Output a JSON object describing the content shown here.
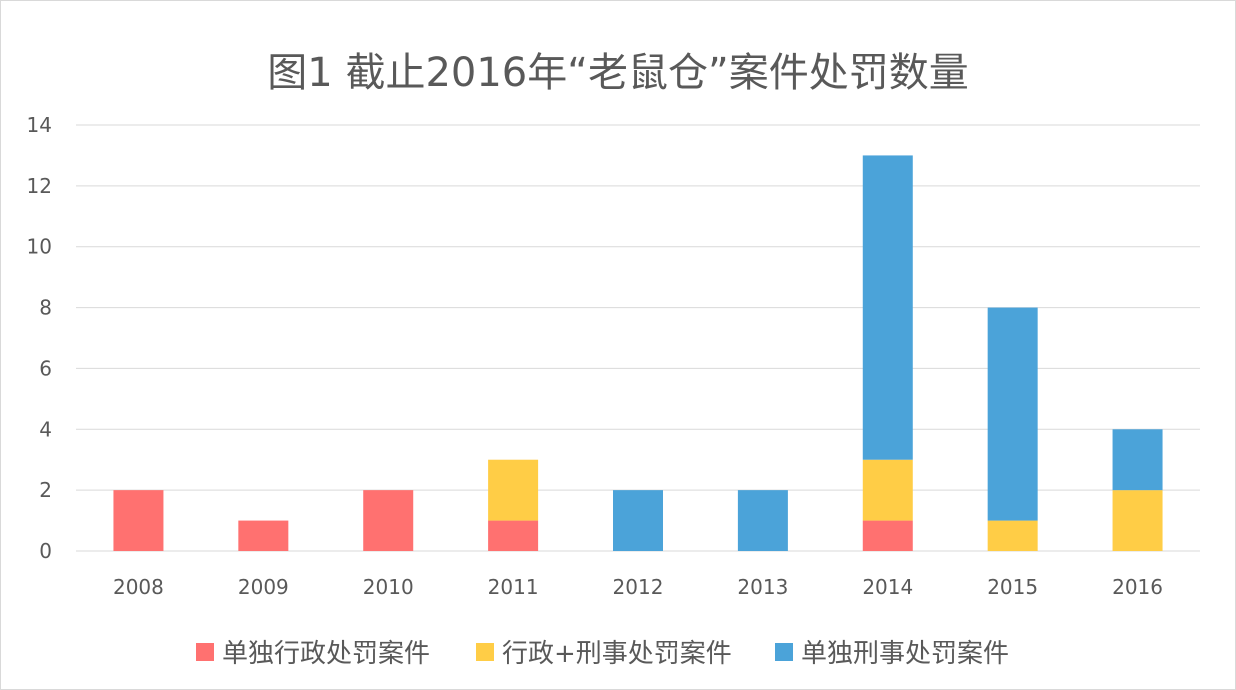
{
  "chart_data": {
    "type": "bar",
    "stacked": true,
    "title": "图1 截止2016年“老鼠仓”案件处罚数量",
    "xlabel": "",
    "ylabel": "",
    "categories": [
      "2008",
      "2009",
      "2010",
      "2011",
      "2012",
      "2013",
      "2014",
      "2015",
      "2016"
    ],
    "ylim": [
      0,
      14
    ],
    "yticks": [
      0,
      2,
      4,
      6,
      8,
      10,
      12,
      14
    ],
    "grid": true,
    "legend_position": "bottom",
    "series": [
      {
        "name": "单独行政处罚案件",
        "color": "#ff7170",
        "values": [
          2,
          1,
          2,
          1,
          0,
          0,
          1,
          0,
          0
        ]
      },
      {
        "name": "行政+刑事处罚案件",
        "color": "#ffcd46",
        "values": [
          0,
          0,
          0,
          2,
          0,
          0,
          2,
          1,
          2
        ]
      },
      {
        "name": "单独刑事处罚案件",
        "color": "#4ba3d9",
        "values": [
          0,
          0,
          0,
          0,
          2,
          2,
          10,
          7,
          2
        ]
      }
    ]
  }
}
